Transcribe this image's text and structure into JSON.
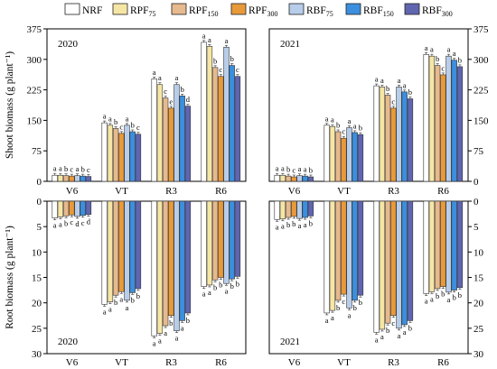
{
  "legend": {
    "items": [
      {
        "key": "NRF",
        "base": "NRF",
        "sub": "",
        "color": "#ffffff"
      },
      {
        "key": "RPF75",
        "base": "RPF",
        "sub": "75",
        "color": "#f6e6a6"
      },
      {
        "key": "RPF150",
        "base": "RPF",
        "sub": "150",
        "color": "#e6b98f"
      },
      {
        "key": "RPF300",
        "base": "RPF",
        "sub": "300",
        "color": "#e89a3a"
      },
      {
        "key": "RBF75",
        "base": "RBF",
        "sub": "75",
        "color": "#b7cdea"
      },
      {
        "key": "RBF150",
        "base": "RBF",
        "sub": "150",
        "color": "#3b8fde"
      },
      {
        "key": "RBF300",
        "base": "RBF",
        "sub": "300",
        "color": "#6065b0"
      }
    ]
  },
  "chart_data": [
    {
      "type": "bar",
      "panel": "shoot-2020",
      "year_label": "2020",
      "ylabel": "Shoot biomass (g plant⁻¹)",
      "categories": [
        "V6",
        "VT",
        "R3",
        "R6"
      ],
      "ylim": [
        0,
        375
      ],
      "yticks": [
        0,
        75,
        150,
        225,
        300,
        375
      ],
      "axis_side": "left",
      "series": [
        {
          "key": "NRF",
          "values": [
            15,
            144,
            252,
            342
          ]
        },
        {
          "key": "RPF75",
          "values": [
            15,
            138,
            238,
            332
          ]
        },
        {
          "key": "RPF150",
          "values": [
            14,
            130,
            205,
            280
          ]
        },
        {
          "key": "RPF300",
          "values": [
            13,
            118,
            180,
            258
          ]
        },
        {
          "key": "RBF75",
          "values": [
            14,
            138,
            238,
            330
          ]
        },
        {
          "key": "RBF150",
          "values": [
            13,
            122,
            210,
            285
          ]
        },
        {
          "key": "RBF300",
          "values": [
            12,
            116,
            185,
            258
          ]
        }
      ],
      "letters": [
        [
          "a",
          "a",
          "b",
          "c",
          "a",
          "b",
          "c"
        ],
        [
          "a",
          "a",
          "b",
          "c",
          "a",
          "b",
          "c"
        ],
        [
          "a",
          "a",
          "c",
          "e",
          "a",
          "b",
          "d"
        ],
        [
          "a",
          "a",
          "b",
          "c",
          "a",
          "b",
          "c"
        ]
      ]
    },
    {
      "type": "bar",
      "panel": "shoot-2021",
      "year_label": "2021",
      "ylabel": "",
      "categories": [
        "V6",
        "VT",
        "R3",
        "R6"
      ],
      "ylim": [
        0,
        375
      ],
      "yticks": [
        0,
        75,
        150,
        225,
        300,
        375
      ],
      "axis_side": "right",
      "series": [
        {
          "key": "NRF",
          "values": [
            15,
            138,
            235,
            312
          ]
        },
        {
          "key": "RPF75",
          "values": [
            15,
            135,
            232,
            308
          ]
        },
        {
          "key": "RPF150",
          "values": [
            13,
            122,
            212,
            285
          ]
        },
        {
          "key": "RPF300",
          "values": [
            11,
            106,
            180,
            262
          ]
        },
        {
          "key": "RBF75",
          "values": [
            14,
            132,
            232,
            308
          ]
        },
        {
          "key": "RBF150",
          "values": [
            13,
            120,
            220,
            298
          ]
        },
        {
          "key": "RBF300",
          "values": [
            11,
            115,
            203,
            282
          ]
        }
      ],
      "letters": [
        [
          "a",
          "a",
          "b",
          "c",
          "a",
          "a",
          "b"
        ],
        [
          "a",
          "a",
          "b",
          "c",
          "a",
          "a",
          "b"
        ],
        [
          "a",
          "a",
          "b",
          "c",
          "a",
          "a",
          "b"
        ],
        [
          "a",
          "a",
          "b",
          "c",
          "a",
          "a",
          "b"
        ]
      ]
    },
    {
      "type": "bar",
      "panel": "root-2020",
      "year_label": "2020",
      "ylabel": "Root biomass (g plant⁻¹)",
      "categories": [
        "V6",
        "VT",
        "R3",
        "R6"
      ],
      "ylim": [
        0,
        30
      ],
      "yticks": [
        0,
        5,
        10,
        15,
        20,
        25,
        30
      ],
      "axis_side": "left",
      "inverted": true,
      "series": [
        {
          "key": "NRF",
          "values": [
            3.3,
            20.3,
            26.5,
            16.8
          ]
        },
        {
          "key": "RPF75",
          "values": [
            3.1,
            19.8,
            26.0,
            16.5
          ]
        },
        {
          "key": "RPF150",
          "values": [
            2.9,
            18.5,
            24.5,
            15.5
          ]
        },
        {
          "key": "RPF300",
          "values": [
            2.7,
            17.8,
            22.5,
            15.0
          ]
        },
        {
          "key": "RBF75",
          "values": [
            3.0,
            19.5,
            25.5,
            16.2
          ]
        },
        {
          "key": "RBF150",
          "values": [
            2.8,
            18.0,
            23.5,
            15.3
          ]
        },
        {
          "key": "RBF300",
          "values": [
            2.6,
            17.2,
            22.0,
            14.8
          ]
        }
      ],
      "letters": [
        [
          "a",
          "a",
          "b",
          "c",
          "d",
          "c",
          "d"
        ],
        [
          "a",
          "a",
          "b",
          "a",
          "a",
          "b",
          "b"
        ],
        [
          "a",
          "a",
          "a",
          "b",
          "a",
          "a",
          "b"
        ],
        [
          "a",
          "a",
          "b",
          "b",
          "a",
          "b",
          "b"
        ]
      ]
    },
    {
      "type": "bar",
      "panel": "root-2021",
      "year_label": "2021",
      "ylabel": "",
      "categories": [
        "V6",
        "VT",
        "R3",
        "R6"
      ],
      "ylim": [
        0,
        30
      ],
      "yticks": [
        0,
        5,
        10,
        15,
        20,
        25,
        30
      ],
      "axis_side": "right",
      "inverted": true,
      "series": [
        {
          "key": "NRF",
          "values": [
            3.6,
            22.0,
            25.8,
            18.2
          ]
        },
        {
          "key": "RPF75",
          "values": [
            3.5,
            21.5,
            25.2,
            17.8
          ]
        },
        {
          "key": "RPF150",
          "values": [
            3.2,
            19.5,
            24.0,
            17.2
          ]
        },
        {
          "key": "RPF300",
          "values": [
            3.0,
            18.3,
            22.5,
            16.8
          ]
        },
        {
          "key": "RBF75",
          "values": [
            3.4,
            21.0,
            25.0,
            17.9
          ]
        },
        {
          "key": "RBF150",
          "values": [
            3.2,
            19.5,
            24.3,
            17.5
          ]
        },
        {
          "key": "RBF300",
          "values": [
            2.9,
            18.5,
            23.5,
            17.0
          ]
        }
      ],
      "letters": [
        [
          "a",
          "a",
          "b",
          "b",
          "a",
          "a",
          "b"
        ],
        [
          "a",
          "a",
          "b",
          "c",
          "a",
          "b",
          "b"
        ],
        [
          "a",
          "a",
          "b",
          "c",
          "a",
          "a",
          "b"
        ],
        [
          "a",
          "a",
          "b",
          "b",
          "a",
          "b",
          "b"
        ]
      ]
    }
  ]
}
